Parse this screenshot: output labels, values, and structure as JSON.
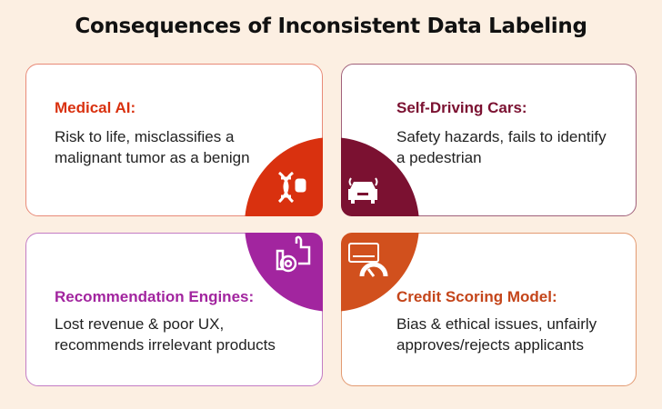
{
  "title": "Consequences of Inconsistent Data Labeling",
  "colors": {
    "background": "#fcefe2",
    "medical": "#d9310f",
    "driving": "#7b1131",
    "recommendation": "#a2259f",
    "credit": "#d1501d"
  },
  "cards": [
    {
      "heading": "Medical AI:",
      "body": [
        "Risk to life, misclassifies a",
        "malignant tumor as a benign"
      ],
      "icon": "dna-ai-icon"
    },
    {
      "heading": "Self-Driving Cars:",
      "body": [
        "Safety hazards, fails to identify",
        "a pedestrian"
      ],
      "icon": "autonomous-car-icon"
    },
    {
      "heading": "Recommendation Engines:",
      "body": [
        "Lost revenue & poor UX,",
        "recommends irrelevant products"
      ],
      "icon": "thumbs-up-gear-icon"
    },
    {
      "heading": "Credit Scoring Model:",
      "body": [
        "Bias & ethical issues, unfairly",
        "approves/rejects applicants"
      ],
      "icon": "credit-card-gauge-icon"
    }
  ]
}
